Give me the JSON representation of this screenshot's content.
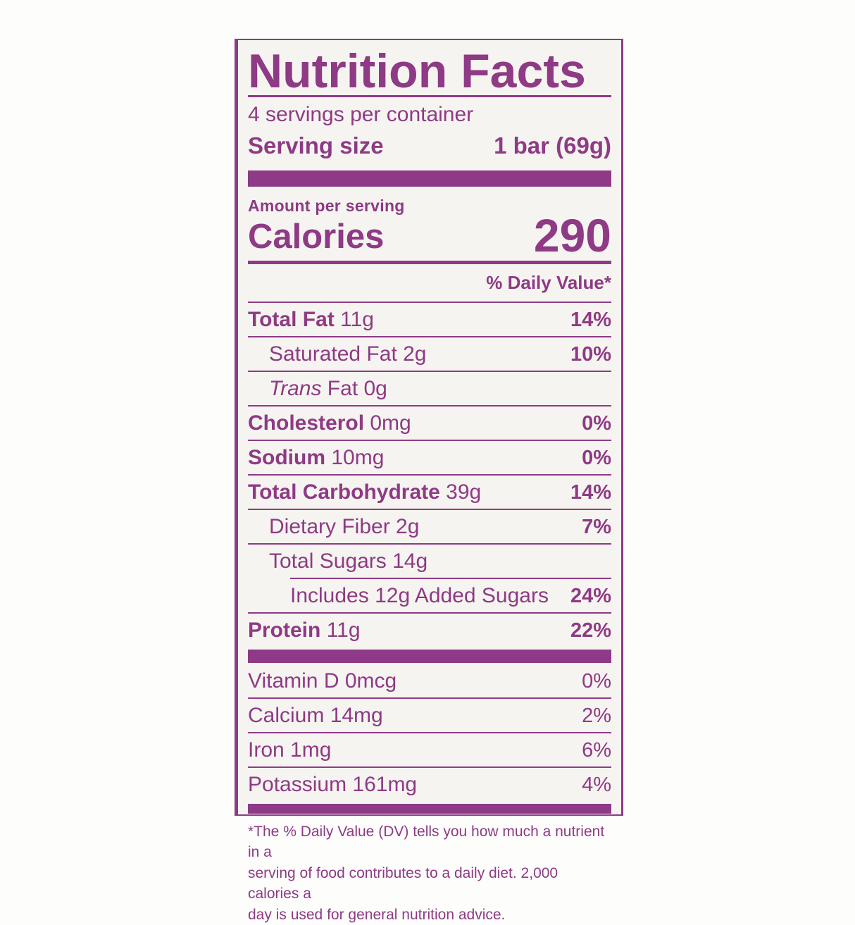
{
  "nutrition": {
    "title": "Nutrition Facts",
    "servings_per_container": "4 servings per container",
    "serving_size_label": "Serving size",
    "serving_size_value": "1 bar (69g)",
    "amount_per_serving": "Amount per serving",
    "calories_label": "Calories",
    "calories_value": "290",
    "daily_value_header": "% Daily Value*",
    "rows": [
      {
        "b": "Total Fat",
        "r": " 11g",
        "dv": "14%"
      },
      {
        "r": "Saturated Fat 2g",
        "dv": "10%"
      },
      {
        "i": "Trans",
        "r": " Fat 0g",
        "dv": ""
      },
      {
        "b": "Cholesterol",
        "r": " 0mg",
        "dv": "0%"
      },
      {
        "b": "Sodium",
        "r": " 10mg",
        "dv": "0%"
      },
      {
        "b": "Total Carbohydrate",
        "r": " 39g",
        "dv": "14%"
      },
      {
        "r": "Dietary Fiber 2g",
        "dv": "7%"
      },
      {
        "r": "Total Sugars 14g",
        "dv": ""
      },
      {
        "r": "Includes 12g Added Sugars",
        "dv": "24%"
      },
      {
        "b": "Protein",
        "r": " 11g",
        "dv": "22%"
      }
    ],
    "vitamins": [
      {
        "r": "Vitamin D 0mcg",
        "dv": "0%"
      },
      {
        "r": "Calcium 14mg",
        "dv": "2%"
      },
      {
        "r": "Iron 1mg",
        "dv": "6%"
      },
      {
        "r": "Potassium 161mg",
        "dv": "4%"
      }
    ],
    "footnote_lines": [
      "*The % Daily Value (DV) tells you how much a nutrient in a",
      "serving of food contributes to a daily diet. 2,000 calories a",
      "day is used for general nutrition advice."
    ],
    "accent_color": "#8e3a87"
  }
}
